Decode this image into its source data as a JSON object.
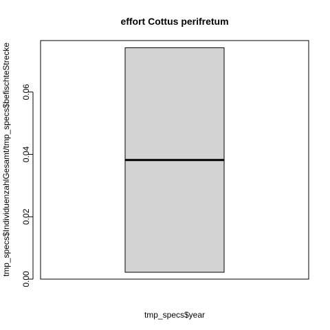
{
  "chart_data": {
    "type": "box",
    "title": "effort Cottus perifretum",
    "xlabel": "tmp_specs$year",
    "ylabel": "tmp_specs$IndividuenzahlGesamt/tmp_specs$befischteStrecke",
    "ylim": [
      0.0,
      0.0765
    ],
    "yticks": [
      0.0,
      0.02,
      0.04,
      0.06
    ],
    "ytick_labels": [
      "0.00",
      "0.02",
      "0.04",
      "0.06"
    ],
    "grid": false,
    "box": {
      "min": 0.0022,
      "q1": 0.0022,
      "median": 0.0382,
      "q3": 0.0742,
      "max": 0.0742
    },
    "colors": {
      "box_fill": "#d3d3d3",
      "stroke": "#000000",
      "background": "#ffffff"
    }
  }
}
